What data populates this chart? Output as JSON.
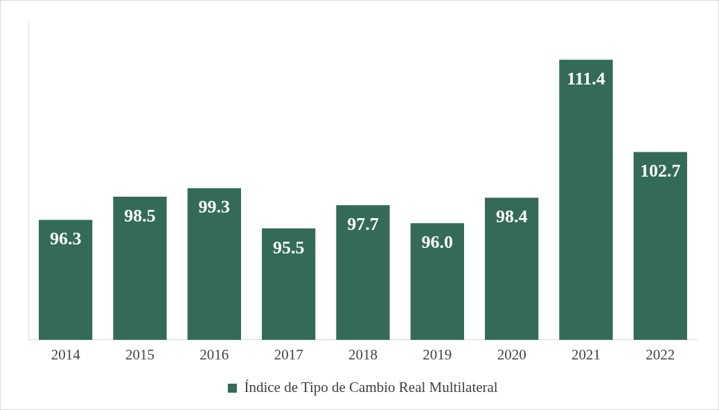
{
  "chart_data": {
    "type": "bar",
    "categories": [
      "2014",
      "2015",
      "2016",
      "2017",
      "2018",
      "2019",
      "2020",
      "2021",
      "2022"
    ],
    "series": [
      {
        "name": "Índice de Tipo de Cambio Real Multilateral",
        "color": "#336b58",
        "values": [
          96.3,
          98.5,
          99.3,
          95.5,
          97.7,
          96.0,
          98.4,
          111.4,
          102.7
        ],
        "value_labels": [
          "96.3",
          "98.5",
          "99.3",
          "95.5",
          "97.7",
          "96.0",
          "98.4",
          "111.4",
          "102.7"
        ]
      }
    ],
    "ylim": [
      85,
      115
    ],
    "tick_labels": "x",
    "grid": false,
    "legend": "bottom"
  }
}
